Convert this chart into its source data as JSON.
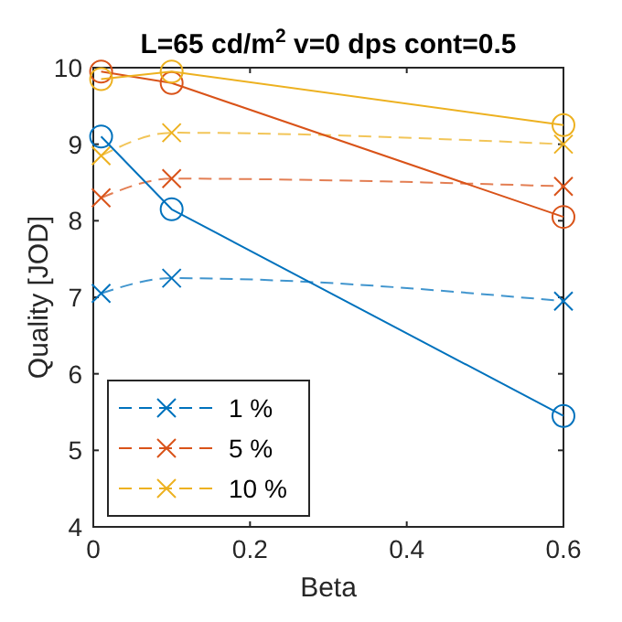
{
  "chart_data": {
    "type": "line",
    "title": "L=65 cd/m$^{2}$  v=0 dps  cont=0.5",
    "xlabel": "Beta",
    "ylabel": "Quality [JOD]",
    "x": [
      0.01,
      0.1,
      0.6
    ],
    "xlim": [
      0,
      0.6
    ],
    "xticks": [
      0,
      0.2,
      0.4,
      0.6
    ],
    "ylim": [
      4,
      10
    ],
    "yticks": [
      4,
      5,
      6,
      7,
      8,
      9,
      10
    ],
    "grid": false,
    "legend": "bottom left",
    "series": [
      {
        "name": "1 %",
        "color": "#0072bd",
        "values": [
          7.05,
          7.25,
          6.95
        ],
        "marker": "cross",
        "line_style": "dashed"
      },
      {
        "name": "5 %",
        "color": "#d95319",
        "values": [
          8.3,
          8.55,
          8.45
        ],
        "marker": "cross",
        "line_style": "dashed"
      },
      {
        "name": "10 %",
        "color": "#edb120",
        "values": [
          8.85,
          9.15,
          9.0
        ],
        "marker": "cross",
        "line_style": "dashed"
      },
      {
        "color": "#0072bd",
        "values": [
          9.1,
          8.15,
          5.45
        ],
        "marker": "circle",
        "line_style": "solid"
      },
      {
        "color": "#d95319",
        "values": [
          9.95,
          9.8,
          8.05
        ],
        "marker": "circle",
        "line_style": "solid"
      },
      {
        "color": "#edb120",
        "values": [
          9.85,
          9.95,
          9.25
        ],
        "marker": "circle",
        "line_style": "solid"
      }
    ]
  }
}
